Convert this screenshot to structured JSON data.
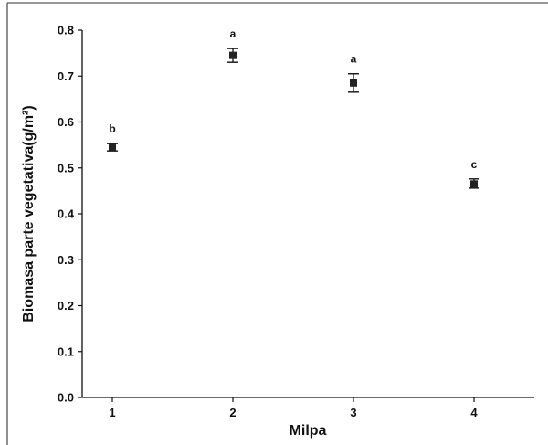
{
  "chart_data": {
    "type": "scatter",
    "xlabel": "Milpa",
    "ylabel": "Biomasa parte vegetativa(g/m²)",
    "xlim": [
      0.75,
      4.5
    ],
    "ylim": [
      0.0,
      0.8
    ],
    "x_ticks": [
      "1",
      "2",
      "3",
      "4"
    ],
    "y_ticks": [
      "0.0",
      "0.1",
      "0.2",
      "0.3",
      "0.4",
      "0.5",
      "0.6",
      "0.7",
      "0.8"
    ],
    "grid": false,
    "series": [
      {
        "points": [
          {
            "x": 1,
            "y": 0.545,
            "err_low": 0.537,
            "err_high": 0.553,
            "label": "b"
          },
          {
            "x": 2,
            "y": 0.745,
            "err_low": 0.73,
            "err_high": 0.76,
            "label": "a"
          },
          {
            "x": 3,
            "y": 0.685,
            "err_low": 0.665,
            "err_high": 0.705,
            "label": "a"
          },
          {
            "x": 4,
            "y": 0.465,
            "err_low": 0.456,
            "err_high": 0.476,
            "label": "c"
          }
        ]
      }
    ]
  }
}
